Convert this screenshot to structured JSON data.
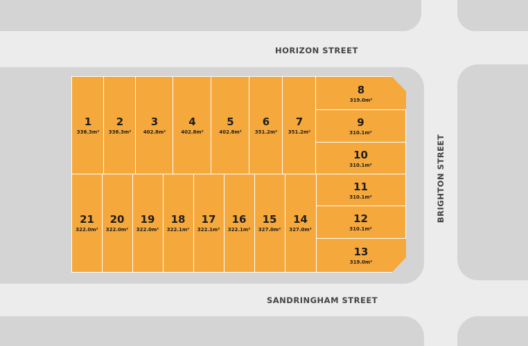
{
  "streets": {
    "top": "HORIZON STREET",
    "bottom": "SANDRINGHAM STREET",
    "right": "BRIGHTON STREET"
  },
  "colors": {
    "lot": "#f5a83c",
    "block": "#d4d4d4",
    "road": "#ececec"
  },
  "area_unit_suffix": "m²",
  "lots": [
    {
      "number": "1",
      "area": "338.3m²"
    },
    {
      "number": "2",
      "area": "338.3m²"
    },
    {
      "number": "3",
      "area": "402.8m²"
    },
    {
      "number": "4",
      "area": "402.8m²"
    },
    {
      "number": "5",
      "area": "402.8m²"
    },
    {
      "number": "6",
      "area": "351.2m²"
    },
    {
      "number": "7",
      "area": "351.2m²"
    },
    {
      "number": "8",
      "area": "319.0m²"
    },
    {
      "number": "9",
      "area": "310.1m²"
    },
    {
      "number": "10",
      "area": "310.1m²"
    },
    {
      "number": "11",
      "area": "310.1m²"
    },
    {
      "number": "12",
      "area": "310.1m²"
    },
    {
      "number": "13",
      "area": "319.0m²"
    },
    {
      "number": "14",
      "area": "327.0m²"
    },
    {
      "number": "15",
      "area": "327.0m²"
    },
    {
      "number": "16",
      "area": "322.1m²"
    },
    {
      "number": "17",
      "area": "322.1m²"
    },
    {
      "number": "18",
      "area": "322.1m²"
    },
    {
      "number": "19",
      "area": "322.0m²"
    },
    {
      "number": "20",
      "area": "322.0m²"
    },
    {
      "number": "21",
      "area": "322.0m²"
    }
  ]
}
